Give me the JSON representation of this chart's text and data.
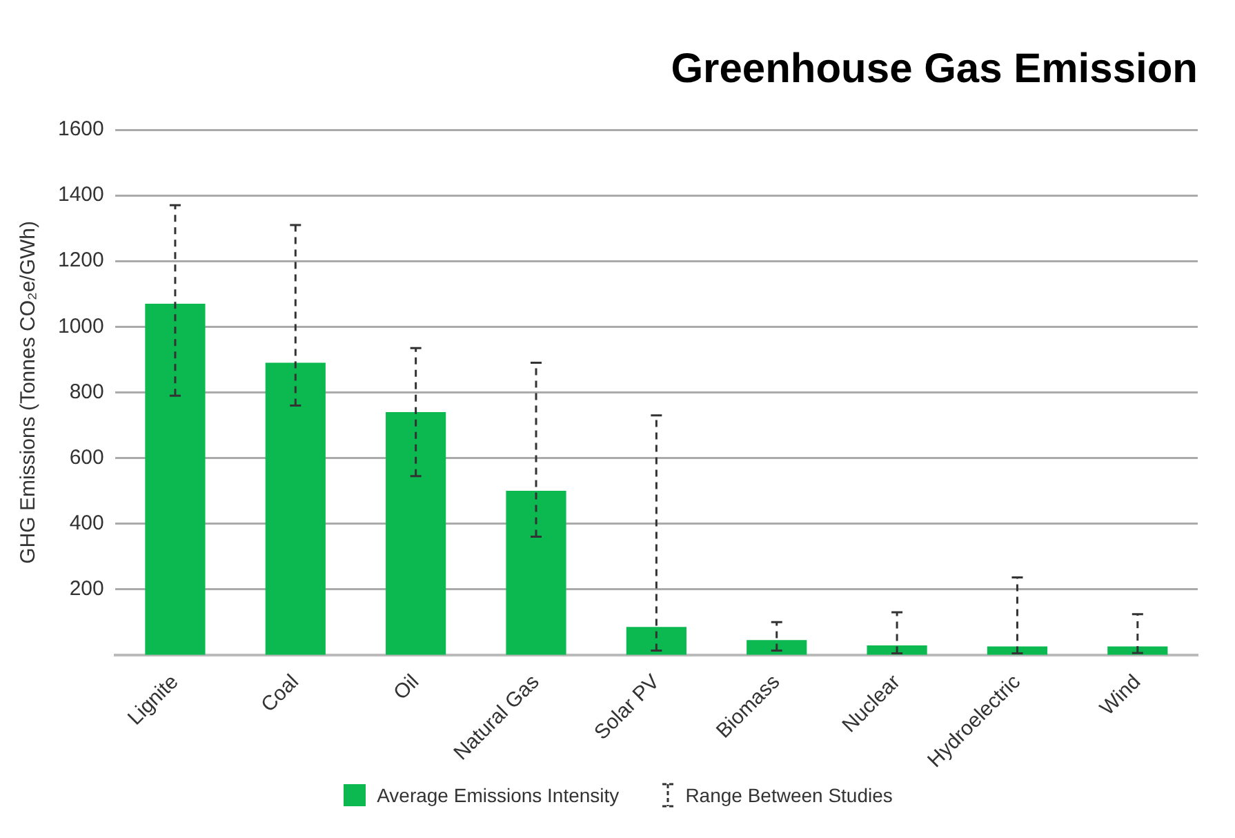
{
  "chart_data": {
    "type": "bar",
    "title": "Greenhouse Gas Emission",
    "ylabel": "GHG Emissions (Tonnes CO₂e/GWh)",
    "categories": [
      "Lignite",
      "Coal",
      "Oil",
      "Natural Gas",
      "Solar PV",
      "Biomass",
      "Nuclear",
      "Hydroelectric",
      "Wind"
    ],
    "series": [
      {
        "name": "Average Emissions Intensity",
        "color": "#0cb850",
        "values": [
          1070,
          890,
          740,
          500,
          85,
          45,
          29,
          26,
          26
        ],
        "errors": [
          [
            790,
            1370
          ],
          [
            760,
            1310
          ],
          [
            545,
            935
          ],
          [
            360,
            890
          ],
          [
            13,
            730
          ],
          [
            13,
            100
          ],
          [
            5,
            130
          ],
          [
            5,
            236
          ],
          [
            6,
            124
          ]
        ]
      }
    ],
    "ylim": [
      0,
      1600
    ],
    "yticks": [
      200,
      400,
      600,
      800,
      1000,
      1200,
      1400,
      1600
    ],
    "grid": "y",
    "legend": "bottom",
    "annotations": [
      "Range Between Studies"
    ]
  }
}
